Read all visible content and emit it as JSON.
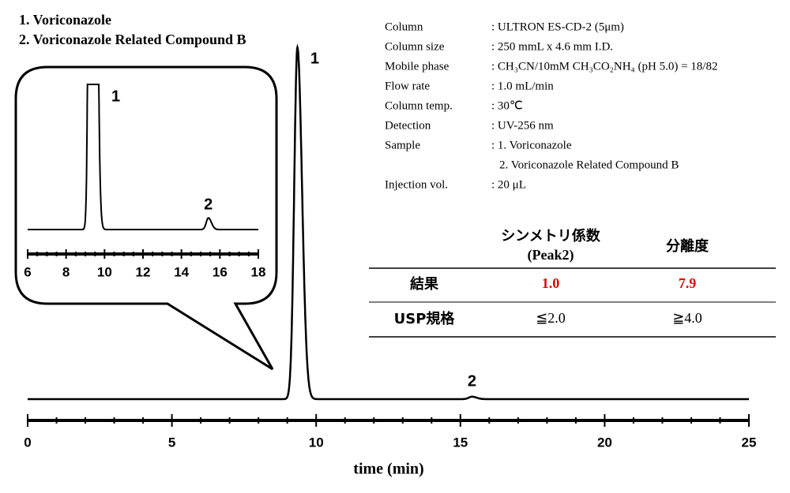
{
  "chart_data": {
    "type": "chromatogram",
    "legend": [
      "1. Voriconazole",
      "2. Voriconazole Related Compound B"
    ],
    "xlabel": "time (min)",
    "xlim": [
      0,
      25
    ],
    "xticks": [
      0,
      5,
      10,
      15,
      20,
      25
    ],
    "xminor": 1,
    "color": "#000000",
    "peaks": [
      {
        "label": "1",
        "x": 9.35,
        "height": 100
      },
      {
        "label": "2",
        "x": 15.4,
        "height": 0.7
      }
    ],
    "inset": {
      "xlim": [
        6,
        18
      ],
      "xticks": [
        6,
        8,
        10,
        12,
        14,
        16,
        18
      ],
      "xminor": 0.5
    }
  },
  "conditions": [
    {
      "label": "Column",
      "value": [
        ": ULTRON ES-CD-2 (5μm)"
      ]
    },
    {
      "label": "Column size",
      "value": [
        ": 250 mmL x 4.6 mm I.D."
      ]
    },
    {
      "label": "Mobile phase",
      "value": [
        ": CH₃CN/10mM CH₃CO₂NH₄ (pH 5.0) = 18/82"
      ]
    },
    {
      "label": "Flow rate",
      "value": [
        ": 1.0 mL/min"
      ]
    },
    {
      "label": "Column temp.",
      "value": [
        ": 30℃"
      ]
    },
    {
      "label": "Detection",
      "value": [
        ": UV-256 nm"
      ]
    },
    {
      "label": "Sample",
      "value": [
        ": 1. Voriconazole",
        "2. Voriconazole Related Compound B"
      ]
    },
    {
      "label": "Injection vol.",
      "value": [
        ": 20 μL"
      ]
    }
  ],
  "results_table": {
    "header": [
      [
        "シンメトリ係数",
        "(Peak2)"
      ],
      [
        "分離度"
      ]
    ],
    "rows": [
      {
        "label": "結果",
        "values": [
          "1.0",
          "7.9"
        ]
      },
      {
        "label": "USP規格",
        "values": [
          "≦2.0",
          "≧4.0"
        ]
      }
    ]
  }
}
